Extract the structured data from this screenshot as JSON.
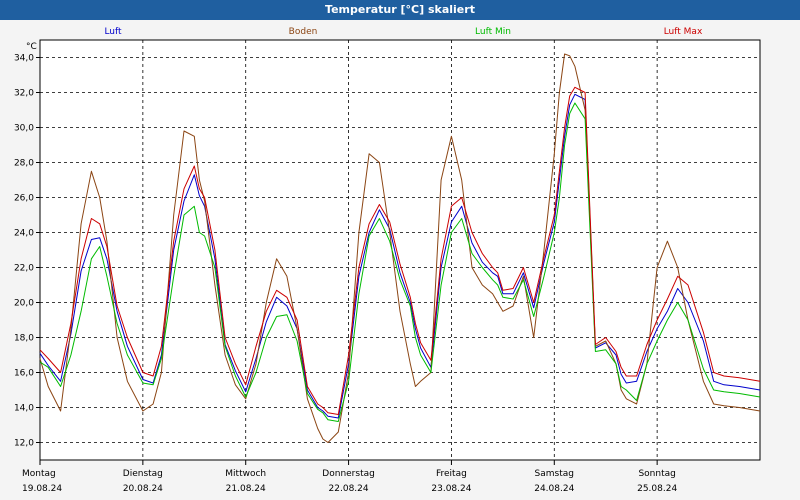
{
  "window": {
    "title": "Temperatur [°C] skaliert"
  },
  "chart_data": {
    "type": "line",
    "title": "Temperatur [°C] skaliert",
    "ylabel": "°C",
    "xlabel": "",
    "ylim": [
      11.0,
      35.0
    ],
    "yticks": [
      "12,0",
      "14,0",
      "16,0",
      "18,0",
      "20,0",
      "22,0",
      "24,0",
      "26,0",
      "28,0",
      "30,0",
      "32,0",
      "34,0"
    ],
    "ytick_values": [
      12,
      14,
      16,
      18,
      20,
      22,
      24,
      26,
      28,
      30,
      32,
      34
    ],
    "xlim": [
      0,
      7
    ],
    "days": [
      {
        "name": "Montag",
        "date": "19.08.24"
      },
      {
        "name": "Dienstag",
        "date": "20.08.24"
      },
      {
        "name": "Mittwoch",
        "date": "21.08.24"
      },
      {
        "name": "Donnerstag",
        "date": "22.08.24"
      },
      {
        "name": "Freitag",
        "date": "23.08.24"
      },
      {
        "name": "Samstag",
        "date": "24.08.24"
      },
      {
        "name": "Sonntag",
        "date": "25.08.24"
      }
    ],
    "grid": true,
    "legend_position": "top",
    "x": [
      0.0,
      0.08,
      0.2,
      0.3,
      0.4,
      0.5,
      0.58,
      0.65,
      0.75,
      0.85,
      1.0,
      1.1,
      1.18,
      1.3,
      1.4,
      1.5,
      1.55,
      1.6,
      1.7,
      1.8,
      1.9,
      2.0,
      2.1,
      2.2,
      2.3,
      2.4,
      2.5,
      2.6,
      2.7,
      2.75,
      2.8,
      2.9,
      3.0,
      3.1,
      3.2,
      3.3,
      3.4,
      3.5,
      3.6,
      3.65,
      3.7,
      3.8,
      3.9,
      4.0,
      4.1,
      4.2,
      4.3,
      4.4,
      4.45,
      4.5,
      4.6,
      4.7,
      4.8,
      4.9,
      5.0,
      5.05,
      5.1,
      5.15,
      5.2,
      5.3,
      5.4,
      5.5,
      5.6,
      5.65,
      5.7,
      5.8,
      5.9,
      6.0,
      6.1,
      6.2,
      6.3,
      6.45,
      6.55,
      6.65,
      6.8,
      6.9,
      7.0
    ],
    "series": [
      {
        "name": "Luft",
        "color": "#0000cc",
        "values": [
          17.1,
          16.4,
          15.5,
          18.2,
          21.8,
          23.6,
          23.7,
          22.5,
          19.5,
          17.5,
          15.6,
          15.4,
          17.0,
          23.0,
          25.8,
          27.3,
          26.1,
          25.5,
          22.5,
          17.6,
          16.1,
          14.9,
          16.8,
          18.9,
          20.3,
          19.8,
          18.5,
          15.0,
          14.0,
          13.8,
          13.5,
          13.4,
          16.5,
          21.5,
          24.0,
          25.3,
          24.2,
          21.7,
          20.0,
          18.5,
          17.4,
          16.3,
          22.0,
          24.6,
          25.5,
          23.4,
          22.3,
          21.7,
          21.5,
          20.5,
          20.5,
          21.7,
          19.7,
          22.3,
          24.6,
          27.0,
          29.5,
          31.3,
          31.9,
          31.6,
          17.4,
          17.7,
          17.0,
          15.9,
          15.4,
          15.5,
          17.2,
          18.5,
          19.5,
          20.8,
          20.0,
          17.8,
          15.5,
          15.3,
          15.2,
          15.1,
          15.0
        ]
      },
      {
        "name": "Boden",
        "color": "#8b4513",
        "values": [
          16.8,
          15.2,
          13.8,
          18.5,
          24.5,
          27.5,
          26.0,
          23.5,
          18.0,
          15.5,
          13.8,
          14.2,
          16.0,
          25.0,
          29.8,
          29.5,
          27.0,
          25.8,
          21.0,
          17.0,
          15.3,
          14.5,
          16.5,
          20.0,
          22.5,
          21.5,
          18.5,
          14.5,
          12.8,
          12.2,
          12.0,
          12.6,
          16.0,
          24.0,
          28.5,
          28.0,
          24.0,
          19.5,
          16.5,
          15.2,
          15.5,
          16.0,
          27.0,
          29.5,
          27.0,
          22.0,
          21.0,
          20.5,
          20.0,
          19.5,
          19.8,
          21.5,
          18.0,
          23.0,
          28.5,
          32.0,
          34.2,
          34.1,
          33.5,
          31.0,
          17.5,
          17.8,
          16.5,
          15.0,
          14.5,
          14.2,
          16.5,
          22.0,
          23.5,
          22.0,
          19.0,
          15.5,
          14.2,
          14.1,
          14.0,
          13.9,
          13.8
        ]
      },
      {
        "name": "Luft Min",
        "color": "#00bb00",
        "values": [
          16.6,
          16.3,
          15.2,
          17.0,
          19.5,
          22.5,
          23.2,
          21.5,
          18.8,
          17.0,
          15.4,
          15.3,
          16.8,
          21.5,
          25.0,
          25.5,
          24.0,
          23.8,
          22.0,
          17.5,
          15.8,
          14.6,
          16.0,
          18.0,
          19.2,
          19.3,
          17.8,
          14.8,
          13.9,
          13.7,
          13.3,
          13.2,
          15.5,
          20.5,
          23.8,
          24.8,
          23.5,
          21.3,
          19.8,
          18.0,
          17.0,
          16.0,
          21.0,
          24.0,
          24.8,
          22.8,
          22.0,
          21.3,
          21.0,
          20.3,
          20.2,
          21.3,
          19.2,
          21.5,
          24.0,
          26.0,
          29.0,
          30.8,
          31.4,
          30.5,
          17.2,
          17.3,
          16.5,
          15.2,
          15.0,
          14.4,
          16.5,
          17.8,
          19.0,
          20.0,
          19.0,
          16.2,
          15.0,
          14.9,
          14.8,
          14.7,
          14.6
        ]
      },
      {
        "name": "Luft Max",
        "color": "#cc0000",
        "values": [
          17.3,
          16.8,
          16.0,
          18.8,
          22.5,
          24.8,
          24.5,
          23.2,
          19.8,
          18.0,
          16.0,
          15.8,
          17.5,
          23.5,
          26.5,
          27.8,
          26.5,
          26.0,
          23.0,
          18.0,
          16.5,
          15.3,
          17.5,
          19.5,
          20.7,
          20.3,
          19.0,
          15.2,
          14.2,
          14.0,
          13.7,
          13.6,
          17.0,
          22.0,
          24.5,
          25.6,
          24.6,
          22.2,
          20.3,
          18.8,
          17.7,
          16.7,
          22.5,
          25.5,
          26.0,
          24.0,
          22.8,
          22.0,
          21.7,
          20.7,
          20.8,
          22.0,
          20.0,
          22.6,
          25.0,
          27.5,
          30.0,
          31.8,
          32.3,
          32.0,
          17.6,
          18.0,
          17.2,
          16.3,
          15.8,
          15.8,
          17.6,
          19.0,
          20.2,
          21.5,
          21.0,
          18.3,
          16.0,
          15.8,
          15.7,
          15.6,
          15.5
        ]
      }
    ]
  }
}
